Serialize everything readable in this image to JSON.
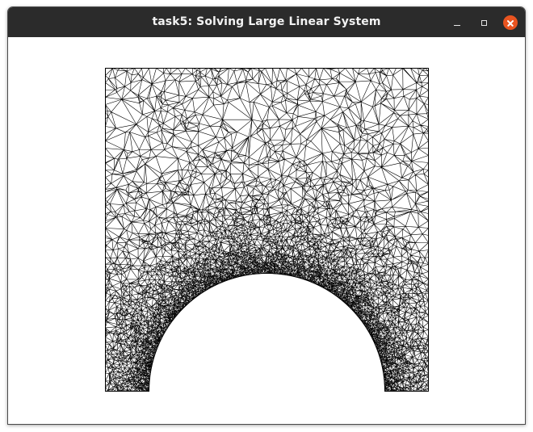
{
  "window": {
    "title": "task5: Solving Large Linear System",
    "controls": {
      "minimize_icon": "minimize-icon",
      "maximize_icon": "maximize-icon",
      "close_icon": "close-icon"
    },
    "colors": {
      "titlebar": "#2b2b2b",
      "title_text": "#f2f2f2",
      "close_button": "#e95420",
      "canvas": "#ffffff",
      "mesh_lines": "#000000"
    }
  },
  "canvas": {
    "content": "triangular-mesh",
    "shape": "square-with-semicircular-cutout-at-bottom"
  }
}
